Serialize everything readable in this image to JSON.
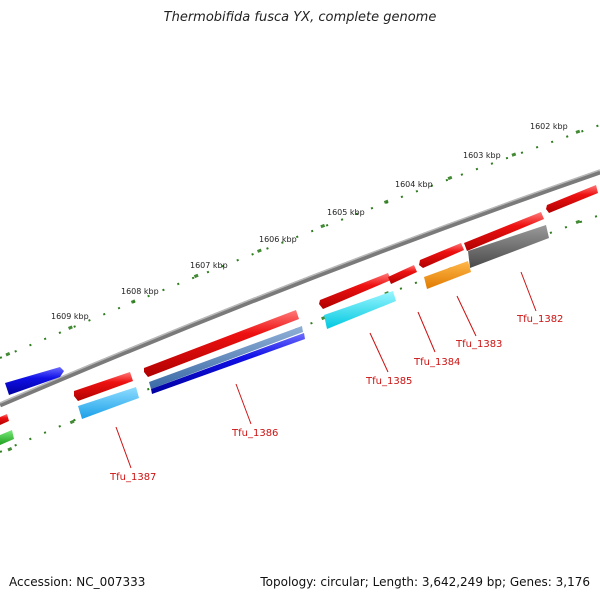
{
  "title": "Thermobifida fusca YX, complete genome",
  "footer": {
    "accession": "Accession: NC_007333",
    "info": "Topology: circular; Length: 3,642,249 bp; Genes: 3,176"
  },
  "colors": {
    "forward_tick": "#2e7d1e",
    "backbone": "#7a7a7a",
    "label": "#cc1111"
  },
  "scale_labels": [
    "1602 kbp",
    "1603 kbp",
    "1604 kbp",
    "1605 kbp",
    "1606 kbp",
    "1607 kbp",
    "1608 kbp",
    "1609 kbp"
  ],
  "gene_labels": [
    "Tfu_1382",
    "Tfu_1383",
    "Tfu_1384",
    "Tfu_1385",
    "Tfu_1386",
    "Tfu_1387"
  ]
}
